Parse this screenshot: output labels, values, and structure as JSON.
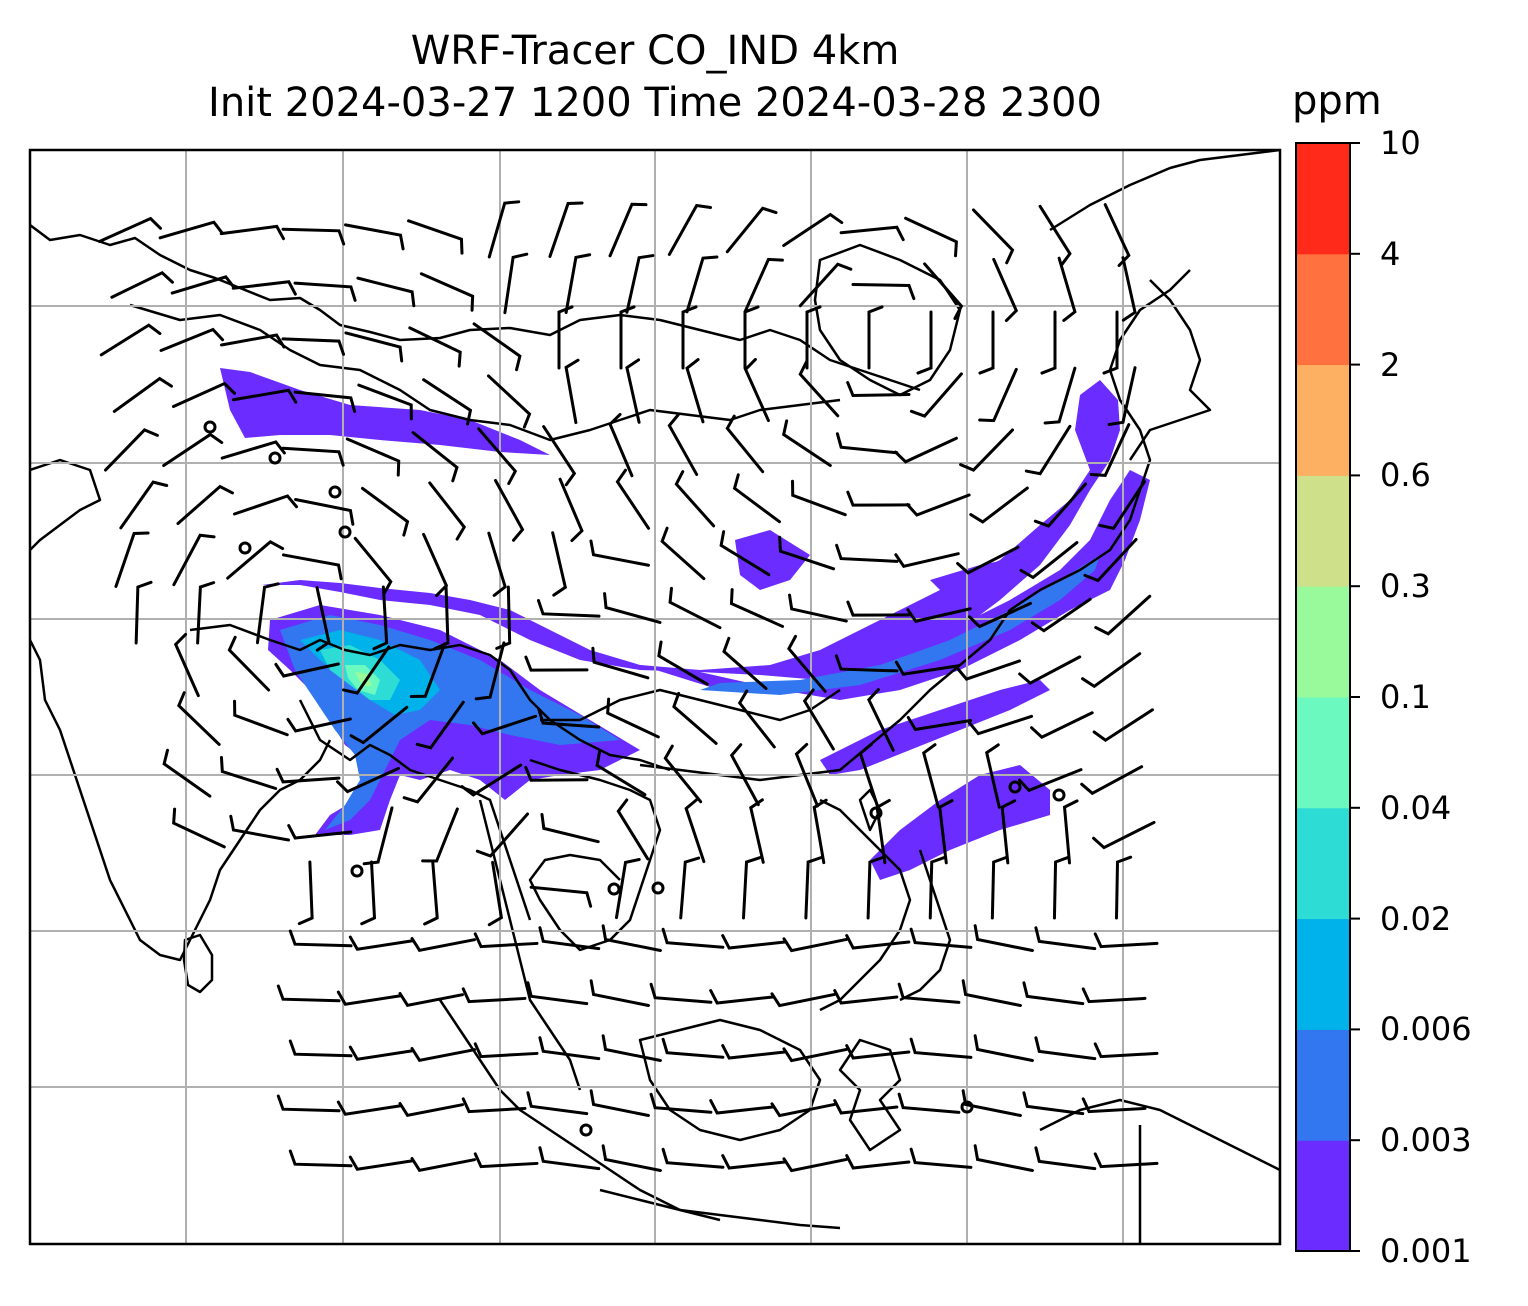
{
  "title_line1": "WRF-Tracer CO_IND 4km",
  "title_line2": "Init 2024-03-27 1200 Time 2024-03-28 2300",
  "colorbar": {
    "unit": "ppm",
    "levels": [
      "0.001",
      "0.003",
      "0.006",
      "0.02",
      "0.04",
      "0.1",
      "0.3",
      "0.6",
      "2",
      "4",
      "10"
    ],
    "colors": [
      "#6a2cff",
      "#3377f0",
      "#00b2ea",
      "#2ddcd5",
      "#6cf9c0",
      "#98fa9a",
      "#cfe08a",
      "#fdb062",
      "#ff7240",
      "#ff2a1a"
    ]
  },
  "map": {
    "gridlines": "on",
    "features": [
      "coastlines",
      "country borders",
      "wind barbs",
      "tracer plume"
    ]
  }
}
